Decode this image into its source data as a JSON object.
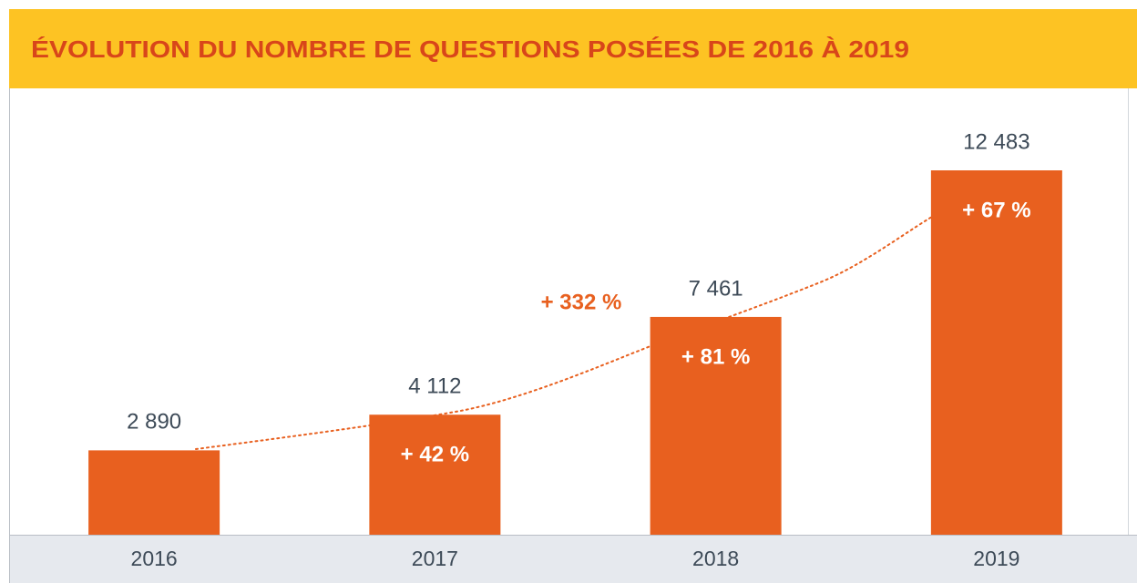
{
  "chart_data": {
    "type": "bar",
    "title": "ÉVOLUTION DU NOMBRE DE QUESTIONS POSÉES DE 2016 À 2019",
    "categories": [
      "2016",
      "2017",
      "2018",
      "2019"
    ],
    "values": [
      2890,
      4112,
      7461,
      12483
    ],
    "value_labels": [
      "2 890",
      "4 112",
      "7 461",
      "12 483"
    ],
    "growth_labels": [
      null,
      "+ 42 %",
      "+ 81 %",
      "+ 67 %"
    ],
    "annotation": "+ 332 %",
    "color": "#e8601f"
  }
}
